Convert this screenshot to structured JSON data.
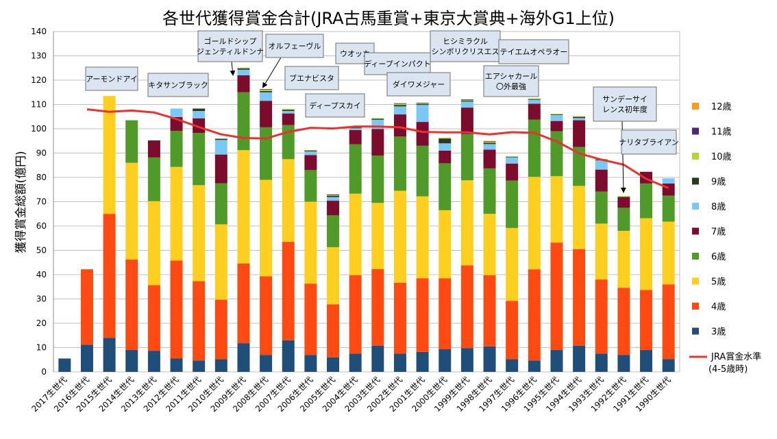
{
  "chart_data": {
    "type": "bar",
    "stacked": true,
    "title": "各世代獲得賞金合計(JRA古馬重賞+東京大賞典+海外G1上位)",
    "ylabel": "獲得賞金総額(億円)",
    "ylim": [
      0,
      140
    ],
    "yticks": [
      0,
      10,
      20,
      30,
      40,
      50,
      60,
      70,
      80,
      90,
      100,
      110,
      120,
      130,
      140
    ],
    "grid": true,
    "legend_position": "right",
    "categories": [
      "2017生世代",
      "2016生世代",
      "2015生世代",
      "2014生世代",
      "2013生世代",
      "2012生世代",
      "2011生世代",
      "2010生世代",
      "2009生世代",
      "2008生世代",
      "2007生世代",
      "2006生世代",
      "2005生世代",
      "2004生世代",
      "2003生世代",
      "2002生世代",
      "2001生世代",
      "2000生世代",
      "1999生世代",
      "1998生世代",
      "1997生世代",
      "1996生世代",
      "1995生世代",
      "1994生世代",
      "1993生世代",
      "1992生世代",
      "1991生世代",
      "1990生世代"
    ],
    "series": [
      {
        "name": "3歳",
        "color": "#1f4e79",
        "values": [
          5.5,
          11.2,
          14.0,
          9.0,
          8.7,
          5.5,
          4.7,
          5.2,
          11.8,
          7.0,
          13.0,
          7.0,
          6.0,
          7.5,
          10.8,
          7.5,
          8.2,
          9.3,
          9.8,
          10.5,
          5.2,
          4.7,
          9.0,
          10.8,
          7.5,
          7.0,
          9.0,
          5.3
        ]
      },
      {
        "name": "4歳",
        "color": "#ff4b12",
        "values": [
          0,
          31.0,
          51.0,
          37.2,
          27.0,
          40.3,
          32.6,
          24.5,
          32.8,
          32.3,
          40.5,
          29.3,
          21.8,
          32.3,
          31.5,
          29.2,
          30.3,
          29.2,
          34.0,
          29.3,
          24.0,
          37.5,
          44.2,
          39.7,
          30.5,
          27.6,
          24.7,
          30.7
        ]
      },
      {
        "name": "5歳",
        "color": "#ffcf1f",
        "values": [
          0,
          0,
          48.5,
          39.8,
          34.5,
          38.5,
          39.5,
          31.0,
          46.6,
          39.7,
          34.0,
          33.7,
          23.5,
          33.5,
          27.2,
          37.8,
          33.7,
          28.0,
          35.0,
          25.2,
          30.0,
          38.0,
          27.3,
          26.0,
          23.0,
          23.4,
          29.5,
          25.8
        ]
      },
      {
        "name": "6歳",
        "color": "#4f9a28",
        "values": [
          0,
          0,
          0,
          17.5,
          18.0,
          14.8,
          21.5,
          16.9,
          23.8,
          21.6,
          14.0,
          13.0,
          13.1,
          20.3,
          19.5,
          22.3,
          20.8,
          19.3,
          19.0,
          18.7,
          19.5,
          23.6,
          18.5,
          16.0,
          13.2,
          9.5,
          14.3,
          10.7
        ]
      },
      {
        "name": "7歳",
        "color": "#7b0c2e",
        "values": [
          0,
          0,
          0,
          0,
          7.0,
          5.7,
          6.0,
          11.8,
          7.0,
          10.9,
          4.8,
          6.2,
          6.0,
          5.9,
          10.9,
          9.1,
          9.8,
          5.2,
          10.9,
          7.7,
          7.0,
          6.5,
          4.2,
          11.0,
          9.0,
          4.2,
          4.8,
          5.0
        ]
      },
      {
        "name": "8歳",
        "color": "#7cc8f5",
        "values": [
          0,
          0,
          0,
          0,
          0,
          3.5,
          3.0,
          6.0,
          2.3,
          3.5,
          1.0,
          1.5,
          1.5,
          0.7,
          3.8,
          3.3,
          7.0,
          3.0,
          2.5,
          2.3,
          2.6,
          1.6,
          2.5,
          0.9,
          3.8,
          0,
          0,
          2.1
        ]
      },
      {
        "name": "9歳",
        "color": "#2b3a18",
        "values": [
          0,
          0,
          0,
          0,
          0,
          0,
          1.0,
          0.5,
          0.5,
          0.5,
          0.5,
          0.3,
          0.5,
          0.3,
          0.4,
          0.6,
          0.4,
          2.0,
          0.4,
          0.5,
          0.2,
          0.3,
          0.2,
          0.5,
          0.3,
          0.3,
          0,
          0
        ]
      },
      {
        "name": "10歳",
        "color": "#b5d334",
        "values": [
          0,
          0,
          0,
          0,
          0,
          0,
          0,
          0,
          0.4,
          0.6,
          0.4,
          0.3,
          0.3,
          0.3,
          0.3,
          0.5,
          0.3,
          0.3,
          0.3,
          0.4,
          0.2,
          0.3,
          0.3,
          0.3,
          0.3,
          0.3,
          0,
          0
        ]
      },
      {
        "name": "11歳",
        "color": "#4b2a78",
        "values": [
          0,
          0,
          0,
          0,
          0,
          0,
          0,
          0,
          0,
          0.2,
          0,
          0,
          0.3,
          0,
          0,
          0.2,
          0.2,
          0,
          0.2,
          0.2,
          0,
          0,
          0,
          0,
          0,
          0,
          0,
          0
        ]
      },
      {
        "name": "12歳",
        "color": "#ff9a1a",
        "values": [
          0,
          0,
          0,
          0,
          0,
          0,
          0,
          0,
          0,
          0,
          0,
          0,
          0,
          0,
          0,
          0,
          0,
          0,
          0,
          0.2,
          0,
          0,
          0,
          0,
          0,
          0,
          0,
          0
        ]
      }
    ],
    "line": {
      "name": "JRA賞金水準\n(4-5歳時)",
      "color": "#ee2f2f",
      "values": [
        null,
        108.0,
        107.0,
        107.5,
        106.7,
        104.0,
        100.7,
        97.7,
        96.2,
        96.0,
        98.7,
        100.4,
        100.1,
        100.9,
        100.9,
        100.6,
        98.7,
        98.5,
        98.5,
        97.7,
        98.6,
        98.3,
        94.8,
        89.9,
        87.3,
        85.2,
        79.4,
        75.6
      ]
    },
    "annotations": [
      {
        "text": "アーモンドアイ"
      },
      {
        "text": "キタサンブラック"
      },
      {
        "text": "ゴールドシップ\nジェンティルドンナ"
      },
      {
        "text": "オルフェーヴル"
      },
      {
        "text": "ブエナビスタ"
      },
      {
        "text": "ウオッカ"
      },
      {
        "text": "ディープスカイ"
      },
      {
        "text": "ディープインパクト"
      },
      {
        "text": "ダイワメジャー"
      },
      {
        "text": "ヒシミラクル\nシンボリクリスエス"
      },
      {
        "text": "テイエムオペラオー"
      },
      {
        "text": "エアシャカール\n〇外最強"
      },
      {
        "text": "サンデーサイ\nレンス初年度"
      },
      {
        "text": "ナリタブライアン"
      }
    ]
  }
}
